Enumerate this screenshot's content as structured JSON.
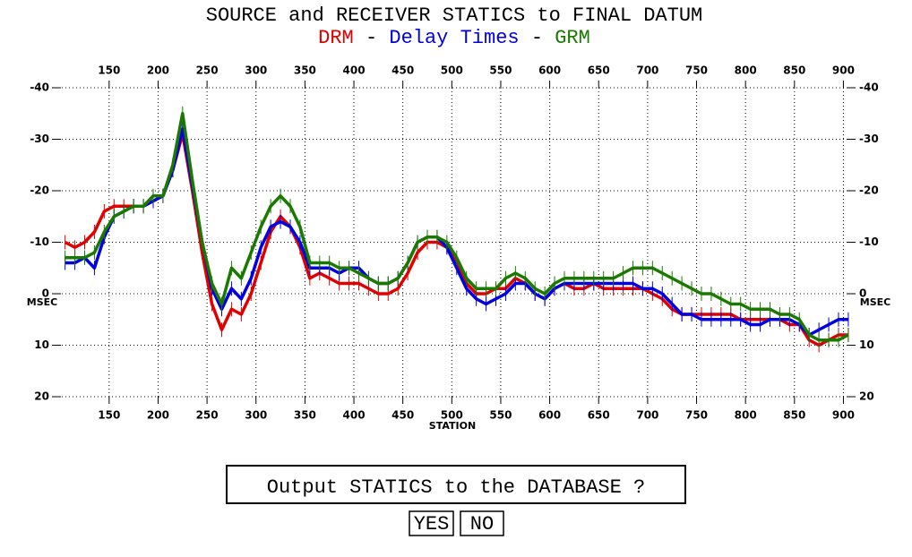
{
  "chart_data": {
    "type": "line",
    "title": "SOURCE and RECEIVER STATICS to FINAL DATUM",
    "legend_separator": "-",
    "xlabel": "STATION",
    "ylabel": "MSEC",
    "xlim": [
      98,
      906
    ],
    "ylim": [
      -40,
      20
    ],
    "y_inverted": true,
    "grid": true,
    "xticks": [
      150,
      200,
      250,
      300,
      350,
      400,
      450,
      500,
      550,
      600,
      650,
      700,
      750,
      800,
      850,
      900
    ],
    "yticks": [
      -40,
      -30,
      -20,
      -10,
      0,
      10,
      20
    ],
    "x": [
      105,
      115,
      125,
      135,
      145,
      155,
      165,
      175,
      185,
      195,
      205,
      215,
      225,
      235,
      245,
      255,
      265,
      275,
      285,
      295,
      305,
      315,
      325,
      335,
      345,
      355,
      365,
      375,
      385,
      395,
      405,
      415,
      425,
      435,
      445,
      455,
      465,
      475,
      485,
      495,
      505,
      515,
      525,
      535,
      545,
      555,
      565,
      575,
      585,
      595,
      605,
      615,
      625,
      635,
      645,
      655,
      665,
      675,
      685,
      695,
      705,
      715,
      725,
      735,
      745,
      755,
      765,
      775,
      785,
      795,
      805,
      815,
      825,
      835,
      845,
      855,
      865,
      875,
      885,
      895,
      905
    ],
    "series": [
      {
        "name": "DRM",
        "color": "#e00000",
        "values": [
          -10,
          -9,
          -10,
          -12,
          -16,
          -17,
          -17,
          -17,
          -17,
          -18,
          -19,
          -24,
          -31,
          -20,
          -8,
          2,
          7,
          3,
          4,
          0,
          -6,
          -12,
          -15,
          -13,
          -9,
          -3,
          -4,
          -3,
          -2,
          -2,
          -2,
          -1,
          0,
          0,
          -1,
          -4,
          -8,
          -10,
          -10,
          -9,
          -6,
          -2,
          0,
          0,
          -1,
          -1,
          -3,
          -2,
          0,
          1,
          -1,
          -2,
          -1,
          -1,
          -2,
          -1,
          -1,
          -1,
          -1,
          -1,
          0,
          1,
          3,
          4,
          4,
          4,
          4,
          4,
          4,
          5,
          5,
          5,
          5,
          5,
          6,
          6,
          9,
          10,
          9,
          8,
          8
        ]
      },
      {
        "name": "Delay Times",
        "color": "#0000e0",
        "values": [
          -6,
          -6,
          -7,
          -5,
          -11,
          -15,
          -16,
          -17,
          -17,
          -18,
          -19,
          -24,
          -32,
          -21,
          -10,
          -1,
          3,
          -1,
          1,
          -3,
          -9,
          -13,
          -14,
          -13,
          -10,
          -5,
          -5,
          -5,
          -4,
          -5,
          -5,
          -3,
          -2,
          -2,
          -3,
          -6,
          -10,
          -11,
          -11,
          -9,
          -5,
          -1,
          1,
          2,
          1,
          0,
          -2,
          -2,
          0,
          1,
          -1,
          -2,
          -2,
          -2,
          -2,
          -2,
          -2,
          -2,
          -2,
          -1,
          -1,
          0,
          2,
          4,
          4,
          5,
          5,
          5,
          5,
          5,
          6,
          6,
          5,
          5,
          5,
          6,
          8,
          7,
          6,
          5,
          5
        ]
      },
      {
        "name": "GRM",
        "color": "#1a7a00",
        "values": [
          -7,
          -7,
          -7,
          -8,
          -12,
          -15,
          -16,
          -17,
          -17,
          -19,
          -19,
          -25,
          -35,
          -22,
          -10,
          -2,
          2,
          -5,
          -3,
          -8,
          -13,
          -17,
          -19,
          -17,
          -13,
          -6,
          -6,
          -6,
          -5,
          -5,
          -4,
          -3,
          -2,
          -2,
          -3,
          -6,
          -10,
          -11,
          -11,
          -10,
          -7,
          -3,
          -1,
          -1,
          -1,
          -3,
          -4,
          -3,
          -1,
          0,
          -2,
          -3,
          -3,
          -3,
          -3,
          -3,
          -3,
          -4,
          -5,
          -5,
          -5,
          -4,
          -3,
          -2,
          -1,
          0,
          0,
          1,
          2,
          2,
          3,
          3,
          3,
          4,
          4,
          5,
          8,
          9,
          9,
          9,
          8
        ]
      }
    ]
  },
  "dialog": {
    "prompt": "Output STATICS to the DATABASE ?",
    "buttons": [
      "YES",
      "NO"
    ]
  }
}
